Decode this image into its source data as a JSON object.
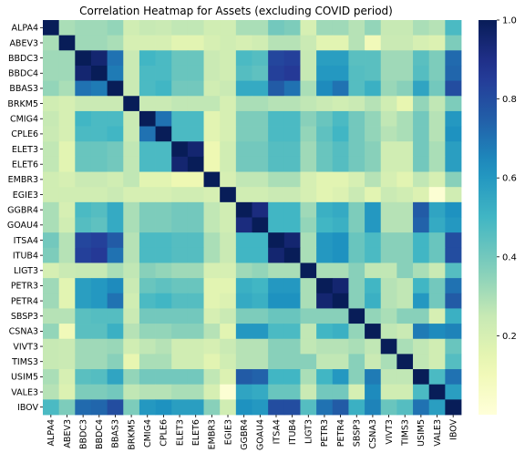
{
  "chart_data": {
    "type": "heatmap",
    "title": "Correlation Heatmap for Assets (excluding COVID period)",
    "xlabel": "",
    "ylabel": "",
    "labels": [
      "ALPA4",
      "ABEV3",
      "BBDC3",
      "BBDC4",
      "BBAS3",
      "BRKM5",
      "CMIG4",
      "CPLE6",
      "ELET3",
      "ELET6",
      "EMBR3",
      "EGIE3",
      "GGBR4",
      "GOAU4",
      "ITSA4",
      "ITUB4",
      "LIGT3",
      "PETR3",
      "PETR4",
      "SBSP3",
      "CSNA3",
      "VIVT3",
      "TIMS3",
      "USIM5",
      "VALE3",
      "IBOV"
    ],
    "colorbar": {
      "range": [
        0.0,
        1.0
      ],
      "ticks": [
        "0.2",
        "0.4",
        "0.6",
        "0.8",
        "1.0"
      ],
      "colormap": "YlGnBu"
    },
    "values": [
      [
        1.0,
        0.3,
        0.32,
        0.32,
        0.34,
        0.22,
        0.25,
        0.24,
        0.26,
        0.26,
        0.22,
        0.22,
        0.3,
        0.3,
        0.4,
        0.38,
        0.2,
        0.32,
        0.32,
        0.28,
        0.34,
        0.25,
        0.25,
        0.3,
        0.28,
        0.48
      ],
      [
        0.3,
        1.0,
        0.32,
        0.32,
        0.3,
        0.2,
        0.2,
        0.2,
        0.16,
        0.16,
        0.2,
        0.22,
        0.2,
        0.22,
        0.28,
        0.28,
        0.24,
        0.16,
        0.16,
        0.28,
        0.1,
        0.24,
        0.24,
        0.2,
        0.18,
        0.38
      ],
      [
        0.32,
        0.32,
        1.0,
        0.95,
        0.7,
        0.24,
        0.5,
        0.48,
        0.42,
        0.42,
        0.24,
        0.22,
        0.48,
        0.46,
        0.82,
        0.84,
        0.25,
        0.58,
        0.58,
        0.45,
        0.45,
        0.32,
        0.32,
        0.45,
        0.38,
        0.72
      ],
      [
        0.32,
        0.32,
        0.95,
        1.0,
        0.68,
        0.24,
        0.48,
        0.48,
        0.42,
        0.42,
        0.24,
        0.22,
        0.46,
        0.44,
        0.84,
        0.86,
        0.25,
        0.6,
        0.6,
        0.46,
        0.45,
        0.32,
        0.32,
        0.46,
        0.38,
        0.73
      ],
      [
        0.34,
        0.3,
        0.7,
        0.68,
        1.0,
        0.24,
        0.48,
        0.5,
        0.4,
        0.4,
        0.22,
        0.24,
        0.54,
        0.54,
        0.76,
        0.7,
        0.3,
        0.64,
        0.7,
        0.46,
        0.52,
        0.33,
        0.36,
        0.56,
        0.4,
        0.8
      ],
      [
        0.22,
        0.2,
        0.24,
        0.24,
        0.24,
        1.0,
        0.24,
        0.24,
        0.26,
        0.26,
        0.26,
        0.2,
        0.3,
        0.3,
        0.28,
        0.28,
        0.26,
        0.24,
        0.22,
        0.24,
        0.28,
        0.22,
        0.14,
        0.34,
        0.26,
        0.38
      ],
      [
        0.25,
        0.2,
        0.5,
        0.48,
        0.48,
        0.24,
        1.0,
        0.7,
        0.48,
        0.48,
        0.16,
        0.2,
        0.38,
        0.38,
        0.48,
        0.48,
        0.36,
        0.42,
        0.48,
        0.4,
        0.34,
        0.26,
        0.3,
        0.4,
        0.28,
        0.6
      ],
      [
        0.24,
        0.2,
        0.48,
        0.48,
        0.5,
        0.24,
        0.7,
        1.0,
        0.48,
        0.48,
        0.16,
        0.2,
        0.38,
        0.38,
        0.48,
        0.48,
        0.34,
        0.44,
        0.5,
        0.4,
        0.34,
        0.28,
        0.3,
        0.4,
        0.28,
        0.62
      ],
      [
        0.26,
        0.16,
        0.42,
        0.42,
        0.4,
        0.26,
        0.48,
        0.48,
        1.0,
        0.95,
        0.12,
        0.22,
        0.4,
        0.4,
        0.46,
        0.46,
        0.32,
        0.42,
        0.46,
        0.4,
        0.36,
        0.22,
        0.22,
        0.4,
        0.3,
        0.58
      ],
      [
        0.26,
        0.16,
        0.42,
        0.42,
        0.4,
        0.26,
        0.48,
        0.48,
        0.95,
        1.0,
        0.12,
        0.22,
        0.4,
        0.4,
        0.46,
        0.46,
        0.32,
        0.42,
        0.46,
        0.4,
        0.36,
        0.22,
        0.22,
        0.4,
        0.3,
        0.58
      ],
      [
        0.22,
        0.2,
        0.24,
        0.24,
        0.22,
        0.26,
        0.16,
        0.16,
        0.12,
        0.12,
        1.0,
        0.2,
        0.26,
        0.26,
        0.3,
        0.3,
        0.2,
        0.16,
        0.16,
        0.2,
        0.28,
        0.2,
        0.16,
        0.26,
        0.2,
        0.36
      ],
      [
        0.22,
        0.22,
        0.22,
        0.22,
        0.24,
        0.2,
        0.2,
        0.2,
        0.22,
        0.22,
        0.2,
        1.0,
        0.22,
        0.22,
        0.24,
        0.24,
        0.2,
        0.16,
        0.18,
        0.24,
        0.16,
        0.24,
        0.22,
        0.18,
        0.02,
        0.22
      ],
      [
        0.3,
        0.2,
        0.48,
        0.46,
        0.54,
        0.3,
        0.38,
        0.38,
        0.4,
        0.4,
        0.26,
        0.22,
        1.0,
        0.92,
        0.5,
        0.5,
        0.32,
        0.52,
        0.54,
        0.38,
        0.6,
        0.28,
        0.28,
        0.76,
        0.56,
        0.62
      ],
      [
        0.3,
        0.22,
        0.46,
        0.44,
        0.54,
        0.3,
        0.38,
        0.38,
        0.4,
        0.4,
        0.26,
        0.22,
        0.92,
        1.0,
        0.5,
        0.5,
        0.34,
        0.5,
        0.52,
        0.38,
        0.6,
        0.28,
        0.28,
        0.74,
        0.54,
        0.6
      ],
      [
        0.4,
        0.28,
        0.82,
        0.84,
        0.76,
        0.28,
        0.48,
        0.48,
        0.46,
        0.46,
        0.3,
        0.24,
        0.5,
        0.5,
        1.0,
        0.95,
        0.3,
        0.6,
        0.62,
        0.42,
        0.48,
        0.36,
        0.36,
        0.5,
        0.42,
        0.8
      ],
      [
        0.38,
        0.28,
        0.84,
        0.86,
        0.7,
        0.28,
        0.48,
        0.48,
        0.46,
        0.46,
        0.3,
        0.24,
        0.5,
        0.5,
        0.95,
        1.0,
        0.3,
        0.6,
        0.62,
        0.42,
        0.48,
        0.36,
        0.36,
        0.5,
        0.42,
        0.8
      ],
      [
        0.2,
        0.24,
        0.25,
        0.25,
        0.3,
        0.26,
        0.36,
        0.34,
        0.32,
        0.32,
        0.2,
        0.2,
        0.32,
        0.34,
        0.3,
        0.3,
        1.0,
        0.3,
        0.3,
        0.36,
        0.26,
        0.26,
        0.36,
        0.3,
        0.24,
        0.46
      ],
      [
        0.32,
        0.16,
        0.58,
        0.6,
        0.64,
        0.24,
        0.42,
        0.44,
        0.42,
        0.42,
        0.16,
        0.16,
        0.52,
        0.5,
        0.6,
        0.6,
        0.3,
        1.0,
        0.95,
        0.36,
        0.5,
        0.28,
        0.26,
        0.5,
        0.4,
        0.7
      ],
      [
        0.32,
        0.16,
        0.58,
        0.6,
        0.7,
        0.22,
        0.48,
        0.5,
        0.46,
        0.46,
        0.16,
        0.18,
        0.54,
        0.52,
        0.62,
        0.62,
        0.3,
        0.95,
        1.0,
        0.36,
        0.52,
        0.28,
        0.26,
        0.6,
        0.4,
        0.76
      ],
      [
        0.28,
        0.28,
        0.45,
        0.46,
        0.46,
        0.24,
        0.4,
        0.4,
        0.4,
        0.4,
        0.2,
        0.24,
        0.38,
        0.38,
        0.42,
        0.42,
        0.36,
        0.36,
        0.36,
        1.0,
        0.34,
        0.3,
        0.36,
        0.36,
        0.2,
        0.52
      ],
      [
        0.34,
        0.1,
        0.45,
        0.45,
        0.52,
        0.28,
        0.34,
        0.34,
        0.36,
        0.36,
        0.28,
        0.16,
        0.6,
        0.6,
        0.48,
        0.48,
        0.26,
        0.5,
        0.52,
        0.34,
        1.0,
        0.26,
        0.24,
        0.68,
        0.64,
        0.66
      ],
      [
        0.25,
        0.24,
        0.32,
        0.32,
        0.33,
        0.22,
        0.26,
        0.28,
        0.22,
        0.22,
        0.2,
        0.24,
        0.28,
        0.28,
        0.36,
        0.36,
        0.26,
        0.28,
        0.28,
        0.3,
        0.26,
        1.0,
        0.3,
        0.26,
        0.22,
        0.42
      ],
      [
        0.25,
        0.24,
        0.32,
        0.32,
        0.36,
        0.14,
        0.3,
        0.3,
        0.22,
        0.22,
        0.16,
        0.22,
        0.28,
        0.28,
        0.36,
        0.36,
        0.36,
        0.26,
        0.26,
        0.36,
        0.24,
        0.3,
        1.0,
        0.26,
        0.22,
        0.46
      ],
      [
        0.3,
        0.2,
        0.45,
        0.46,
        0.56,
        0.34,
        0.4,
        0.4,
        0.4,
        0.4,
        0.26,
        0.18,
        0.76,
        0.74,
        0.5,
        0.5,
        0.3,
        0.5,
        0.6,
        0.36,
        0.68,
        0.26,
        0.26,
        1.0,
        0.48,
        0.7
      ],
      [
        0.28,
        0.18,
        0.38,
        0.38,
        0.4,
        0.26,
        0.28,
        0.28,
        0.3,
        0.3,
        0.2,
        0.02,
        0.56,
        0.54,
        0.42,
        0.42,
        0.24,
        0.4,
        0.4,
        0.2,
        0.64,
        0.22,
        0.22,
        0.48,
        1.0,
        0.58
      ],
      [
        0.48,
        0.38,
        0.72,
        0.73,
        0.8,
        0.38,
        0.6,
        0.62,
        0.58,
        0.58,
        0.36,
        0.22,
        0.62,
        0.6,
        0.8,
        0.8,
        0.46,
        0.7,
        0.76,
        0.52,
        0.66,
        0.42,
        0.46,
        0.7,
        0.58,
        1.0
      ]
    ]
  }
}
